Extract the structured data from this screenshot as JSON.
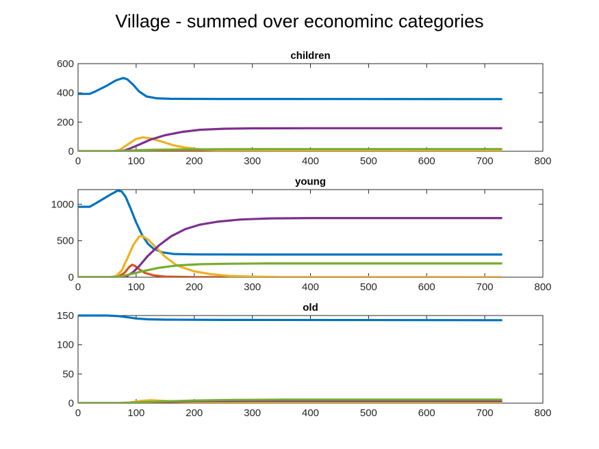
{
  "title": "Village - summed over econominc categories",
  "colors": {
    "axis": "#262626",
    "series": [
      "#0072BD",
      "#D95319",
      "#EDB120",
      "#7E2F8E",
      "#77AC30"
    ]
  },
  "chart_data": [
    {
      "type": "line",
      "title": "children",
      "xlim": [
        0,
        800
      ],
      "ylim": [
        0,
        600
      ],
      "xticks": [
        0,
        100,
        200,
        300,
        400,
        500,
        600,
        700,
        800
      ],
      "yticks": [
        0,
        200,
        400,
        600
      ],
      "series": [
        {
          "color": "#0072BD",
          "points": [
            [
              0,
              393
            ],
            [
              20,
              393
            ],
            [
              30,
              410
            ],
            [
              50,
              450
            ],
            [
              65,
              485
            ],
            [
              78,
              502
            ],
            [
              85,
              492
            ],
            [
              95,
              455
            ],
            [
              105,
              410
            ],
            [
              118,
              375
            ],
            [
              135,
              363
            ],
            [
              160,
              359
            ],
            [
              250,
              358
            ],
            [
              730,
              357
            ]
          ]
        },
        {
          "color": "#D95319",
          "points": [
            [
              0,
              0
            ],
            [
              60,
              0
            ],
            [
              80,
              1
            ],
            [
              95,
              4
            ],
            [
              110,
              3
            ],
            [
              150,
              1
            ],
            [
              730,
              0
            ]
          ]
        },
        {
          "color": "#EDB120",
          "points": [
            [
              0,
              0
            ],
            [
              60,
              0
            ],
            [
              72,
              10
            ],
            [
              85,
              45
            ],
            [
              100,
              85
            ],
            [
              112,
              95
            ],
            [
              125,
              88
            ],
            [
              145,
              65
            ],
            [
              165,
              40
            ],
            [
              185,
              25
            ],
            [
              210,
              13
            ],
            [
              250,
              5
            ],
            [
              300,
              2
            ],
            [
              400,
              0
            ],
            [
              730,
              0
            ]
          ]
        },
        {
          "color": "#7E2F8E",
          "points": [
            [
              0,
              0
            ],
            [
              70,
              0
            ],
            [
              80,
              5
            ],
            [
              90,
              20
            ],
            [
              105,
              45
            ],
            [
              125,
              80
            ],
            [
              150,
              110
            ],
            [
              180,
              133
            ],
            [
              210,
              147
            ],
            [
              250,
              154
            ],
            [
              300,
              157
            ],
            [
              400,
              158
            ],
            [
              730,
              158
            ]
          ]
        },
        {
          "color": "#77AC30",
          "points": [
            [
              0,
              0
            ],
            [
              70,
              0
            ],
            [
              85,
              3
            ],
            [
              100,
              7
            ],
            [
              130,
              10
            ],
            [
              170,
              12
            ],
            [
              250,
              14
            ],
            [
              350,
              15
            ],
            [
              730,
              15
            ]
          ]
        }
      ]
    },
    {
      "type": "line",
      "title": "young",
      "xlim": [
        0,
        800
      ],
      "ylim": [
        0,
        1200
      ],
      "xticks": [
        0,
        100,
        200,
        300,
        400,
        500,
        600,
        700,
        800
      ],
      "yticks": [
        0,
        500,
        1000
      ],
      "series": [
        {
          "color": "#0072BD",
          "points": [
            [
              0,
              965
            ],
            [
              20,
              965
            ],
            [
              30,
              1010
            ],
            [
              45,
              1080
            ],
            [
              60,
              1150
            ],
            [
              68,
              1185
            ],
            [
              75,
              1175
            ],
            [
              82,
              1100
            ],
            [
              90,
              950
            ],
            [
              100,
              750
            ],
            [
              110,
              580
            ],
            [
              120,
              460
            ],
            [
              130,
              390
            ],
            [
              145,
              340
            ],
            [
              165,
              318
            ],
            [
              200,
              312
            ],
            [
              300,
              310
            ],
            [
              730,
              310
            ]
          ]
        },
        {
          "color": "#D95319",
          "points": [
            [
              0,
              0
            ],
            [
              60,
              0
            ],
            [
              70,
              10
            ],
            [
              80,
              60
            ],
            [
              88,
              140
            ],
            [
              93,
              170
            ],
            [
              98,
              155
            ],
            [
              105,
              110
            ],
            [
              115,
              60
            ],
            [
              130,
              25
            ],
            [
              150,
              8
            ],
            [
              200,
              2
            ],
            [
              300,
              0
            ],
            [
              730,
              0
            ]
          ]
        },
        {
          "color": "#EDB120",
          "points": [
            [
              0,
              0
            ],
            [
              55,
              0
            ],
            [
              65,
              15
            ],
            [
              75,
              90
            ],
            [
              85,
              260
            ],
            [
              95,
              440
            ],
            [
              105,
              555
            ],
            [
              110,
              565
            ],
            [
              120,
              520
            ],
            [
              135,
              400
            ],
            [
              150,
              280
            ],
            [
              170,
              160
            ],
            [
              200,
              80
            ],
            [
              230,
              40
            ],
            [
              260,
              18
            ],
            [
              300,
              8
            ],
            [
              350,
              3
            ],
            [
              730,
              0
            ]
          ]
        },
        {
          "color": "#7E2F8E",
          "points": [
            [
              0,
              0
            ],
            [
              75,
              0
            ],
            [
              85,
              20
            ],
            [
              95,
              70
            ],
            [
              105,
              150
            ],
            [
              120,
              290
            ],
            [
              140,
              440
            ],
            [
              160,
              560
            ],
            [
              185,
              660
            ],
            [
              210,
              720
            ],
            [
              240,
              760
            ],
            [
              280,
              790
            ],
            [
              330,
              805
            ],
            [
              400,
              810
            ],
            [
              730,
              810
            ]
          ]
        },
        {
          "color": "#77AC30",
          "points": [
            [
              0,
              0
            ],
            [
              60,
              0
            ],
            [
              75,
              10
            ],
            [
              90,
              40
            ],
            [
              110,
              80
            ],
            [
              140,
              130
            ],
            [
              170,
              160
            ],
            [
              210,
              178
            ],
            [
              260,
              185
            ],
            [
              320,
              188
            ],
            [
              730,
              188
            ]
          ]
        }
      ]
    },
    {
      "type": "line",
      "title": "old",
      "xlim": [
        0,
        800
      ],
      "ylim": [
        0,
        150
      ],
      "xticks": [
        0,
        100,
        200,
        300,
        400,
        500,
        600,
        700,
        800
      ],
      "yticks": [
        0,
        50,
        100,
        150
      ],
      "series": [
        {
          "color": "#0072BD",
          "points": [
            [
              0,
              150
            ],
            [
              50,
              150
            ],
            [
              70,
              149
            ],
            [
              85,
              147
            ],
            [
              100,
              145
            ],
            [
              120,
              143.5
            ],
            [
              150,
              143
            ],
            [
              250,
              142.5
            ],
            [
              730,
              142
            ]
          ]
        },
        {
          "color": "#D95319",
          "points": [
            [
              0,
              0
            ],
            [
              70,
              0
            ],
            [
              90,
              1
            ],
            [
              120,
              1.5
            ],
            [
              200,
              1
            ],
            [
              730,
              1
            ]
          ]
        },
        {
          "color": "#EDB120",
          "points": [
            [
              0,
              0
            ],
            [
              80,
              0
            ],
            [
              95,
              2
            ],
            [
              110,
              4
            ],
            [
              125,
              5
            ],
            [
              145,
              4
            ],
            [
              170,
              2.5
            ],
            [
              220,
              1
            ],
            [
              300,
              0.5
            ],
            [
              730,
              0
            ]
          ]
        },
        {
          "color": "#7E2F8E",
          "points": [
            [
              0,
              0
            ],
            [
              80,
              0
            ],
            [
              100,
              1
            ],
            [
              150,
              2.5
            ],
            [
              200,
              3.5
            ],
            [
              300,
              4
            ],
            [
              730,
              4
            ]
          ]
        },
        {
          "color": "#77AC30",
          "points": [
            [
              0,
              0
            ],
            [
              80,
              0
            ],
            [
              100,
              1
            ],
            [
              150,
              3
            ],
            [
              200,
              4.5
            ],
            [
              260,
              5.5
            ],
            [
              350,
              6
            ],
            [
              730,
              6
            ]
          ]
        }
      ]
    }
  ]
}
